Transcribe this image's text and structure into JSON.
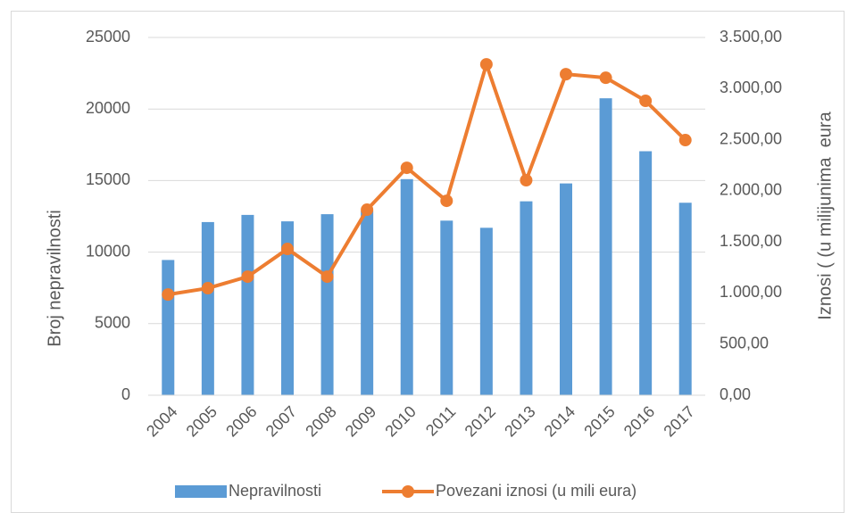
{
  "chart_data": {
    "type": "bar_line",
    "categories": [
      "2004",
      "2005",
      "2006",
      "2007",
      "2008",
      "2009",
      "2010",
      "2011",
      "2012",
      "2013",
      "2014",
      "2015",
      "2016",
      "2017"
    ],
    "series": [
      {
        "name": "Nepravilnosti",
        "type": "bar",
        "color": "#5b9bd5",
        "values": [
          9450,
          12100,
          12600,
          12150,
          12650,
          12900,
          15100,
          12200,
          11700,
          13550,
          14800,
          20750,
          17050,
          13450
        ]
      },
      {
        "name": "Povezani iznosi (u mili eura)",
        "type": "line",
        "axis": "y2",
        "color": "#ed7d31",
        "values": [
          985,
          1047,
          1160,
          1431,
          1160,
          1815,
          2225,
          1902,
          3237,
          2103,
          3141,
          3106,
          2880,
          2496
        ]
      }
    ],
    "ylabel": "Broj nepravilnosti",
    "y2label": "Iznosi ( (u milijunima  eura",
    "ylim": [
      0,
      25000
    ],
    "yticks": [
      0,
      5000,
      10000,
      15000,
      20000,
      25000
    ],
    "y2lim": [
      0,
      3500
    ],
    "y2ticks": [
      {
        "value": 0,
        "label": "0,00"
      },
      {
        "value": 500,
        "label": "500,00"
      },
      {
        "value": 1000,
        "label": "1.000,00"
      },
      {
        "value": 1500,
        "label": "1.500,00"
      },
      {
        "value": 2000,
        "label": "2.000,00"
      },
      {
        "value": 2500,
        "label": "2.500,00"
      },
      {
        "value": 3000,
        "label": "3.000,00"
      },
      {
        "value": 3500,
        "label": "3.500,00"
      }
    ],
    "grid": true,
    "legend": "bottom"
  }
}
